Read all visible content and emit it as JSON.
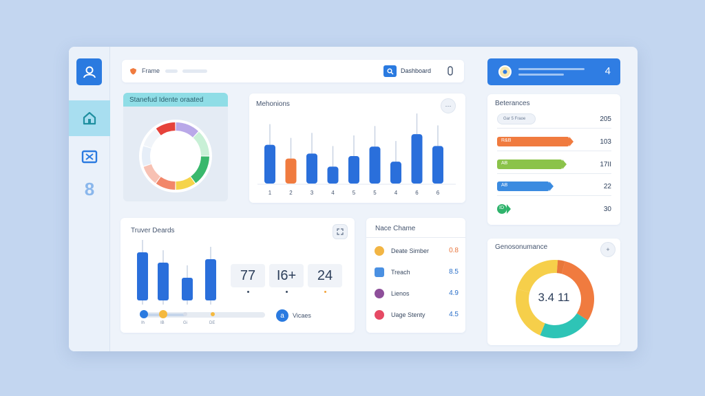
{
  "search": {
    "label": "Frame",
    "link": "Dashboard"
  },
  "header_right": {
    "count": "4"
  },
  "donut_card": {
    "title": "Stanefud Idente oraated"
  },
  "bars_card": {
    "title": "Mehonions",
    "action": "⋯"
  },
  "bars_chart": {
    "type": "bar",
    "categories": [
      "1",
      "2",
      "3",
      "4",
      "5",
      "5",
      "4",
      "6",
      "6"
    ],
    "values": [
      62,
      40,
      48,
      27,
      44,
      59,
      35,
      79,
      60
    ],
    "highlight_index": 1,
    "ylim": [
      0,
      100
    ]
  },
  "trend_card": {
    "title": "Truver Deards",
    "stats": [
      "77",
      "I6+",
      "24"
    ],
    "slider_labels": [
      "Ih",
      "IB",
      "Gi",
      "DE"
    ],
    "slider_level": 0.36,
    "views_icon": "a",
    "views_label": "Vicaes"
  },
  "trend_chart": {
    "type": "bar",
    "values": [
      70,
      55,
      33,
      60
    ],
    "ylim": [
      0,
      100
    ]
  },
  "name_card": {
    "title": "Nace Chame",
    "rows": [
      {
        "label": "Deate Simber",
        "value": "0.8",
        "color": "#f2b544",
        "value_color": "#e8743b"
      },
      {
        "label": "Treach",
        "value": "8.5",
        "color": "#4a90e2",
        "value_color": "#2a6fc9"
      },
      {
        "label": "Lienos",
        "value": "4.9",
        "color": "#8e4f9a",
        "value_color": "#2a6fc9"
      },
      {
        "label": "Uage Stenty",
        "value": "4.5",
        "color": "#e64a64",
        "value_color": "#2a6fc9"
      }
    ]
  },
  "ref_card": {
    "title": "Beterances",
    "chip": "Gar 5 Fraoe",
    "rows": [
      {
        "value": "205",
        "bar": null
      },
      {
        "value": "103",
        "bar": {
          "level": 0.62,
          "color": "#f07b3f",
          "label": "R&B"
        }
      },
      {
        "value": "17II",
        "bar": {
          "level": 0.56,
          "color": "#8bc34a",
          "label": "AB"
        }
      },
      {
        "value": "22",
        "bar": {
          "level": 0.45,
          "color": "#3b8be0",
          "label": "AB"
        }
      },
      {
        "value": "30",
        "bar": {
          "level": 0.07,
          "color": "#2fb36c",
          "label": "ID"
        }
      }
    ]
  },
  "gauge_card": {
    "title": "Genosonumance",
    "action": "+",
    "center": "3.4 11"
  },
  "gauge_chart": {
    "type": "pie",
    "values": [
      30,
      22,
      23,
      22,
      3
    ],
    "colors": [
      "#f07b3f",
      "#2ec4b6",
      "#f6cf4a",
      "#f6cf4a",
      "#e8773a"
    ]
  },
  "donut_chart": {
    "type": "pie",
    "values": [
      12,
      13,
      15,
      10,
      10,
      10,
      10,
      10,
      10
    ],
    "colors": [
      "#b9a8e8",
      "#c8f0d6",
      "#39b86c",
      "#f5d44a",
      "#f2876a",
      "#f7c1b3",
      "#e6eef8",
      "#f0f4f9",
      "#e6423a"
    ]
  },
  "colors": {
    "accent": "#2a7ae0",
    "highlight": "#f07b3f"
  }
}
